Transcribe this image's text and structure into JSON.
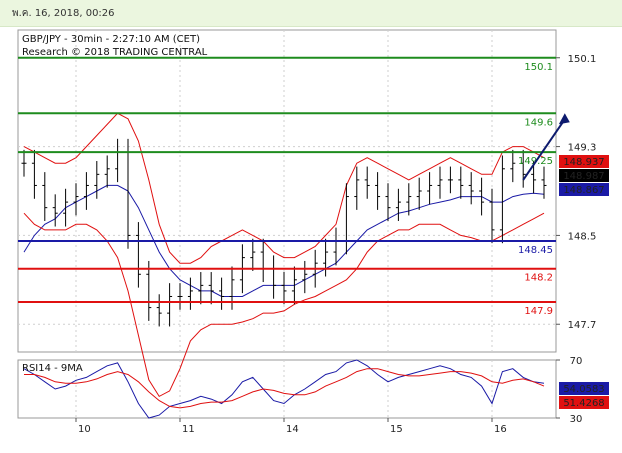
{
  "header": {
    "timestamp": "พ.ค. 16, 2018, 00:26"
  },
  "chart_data": {
    "type": "line",
    "title": "GBP/JPY - 30min - 2:27:10 AM (CET)",
    "subtitle": "Research © 2018 TRADING CENTRAL",
    "ylim": [
      147.45,
      150.35
    ],
    "y_ticks": [
      {
        "value": 150.1,
        "label": "150.1"
      },
      {
        "value": 149.3,
        "label": "149.3"
      },
      {
        "value": 148.5,
        "label": "148.5"
      },
      {
        "value": 147.7,
        "label": "147.7"
      }
    ],
    "x_ticks": [
      {
        "index": 5,
        "label": "10"
      },
      {
        "index": 15,
        "label": "11"
      },
      {
        "index": 25,
        "label": "14"
      },
      {
        "index": 35,
        "label": "15"
      },
      {
        "index": 45,
        "label": "16"
      }
    ],
    "levels": [
      {
        "value": 150.1,
        "label": "150.1",
        "color": "#1e8c1e"
      },
      {
        "value": 149.6,
        "label": "149.6",
        "color": "#1e8c1e"
      },
      {
        "value": 149.25,
        "label": "149.25",
        "color": "#1e8c1e"
      },
      {
        "value": 148.45,
        "label": "148.45",
        "color": "#1a1aa6"
      },
      {
        "value": 148.2,
        "label": "148.2",
        "color": "#e01010"
      },
      {
        "value": 147.9,
        "label": "147.9",
        "color": "#e01010"
      }
    ],
    "price_labels": [
      {
        "value": 148.937,
        "label": "148.937",
        "bg": "#e01010",
        "fg": "#ffffff"
      },
      {
        "value": 148.987,
        "label": "148.987",
        "bg": "#000000",
        "fg": "#ffffff"
      },
      {
        "value": 148.867,
        "label": "148.867",
        "bg": "#1a1aa6",
        "fg": "#ffffff"
      }
    ],
    "series": [
      {
        "name": "",
        "role": "price",
        "color": "#000000",
        "values": [
          149.15,
          148.95,
          148.75,
          148.7,
          148.8,
          148.85,
          148.95,
          149.05,
          149.1,
          149.25,
          148.5,
          148.15,
          147.85,
          147.8,
          147.95,
          147.95,
          148.0,
          148.05,
          148.0,
          147.95,
          148.1,
          148.3,
          148.35,
          148.2,
          148.05,
          148.0,
          148.1,
          148.15,
          148.25,
          148.35,
          148.45,
          148.85,
          149.0,
          148.95,
          148.85,
          148.75,
          148.8,
          148.85,
          148.9,
          148.95,
          149.0,
          149.0,
          148.95,
          148.9,
          148.8,
          148.55,
          149.1,
          149.15,
          149.05,
          149.0,
          148.95
        ]
      },
      {
        "name": "",
        "role": "ma",
        "color": "#1a1aa6",
        "values": [
          148.35,
          148.5,
          148.6,
          148.65,
          148.75,
          148.8,
          148.85,
          148.9,
          148.95,
          148.95,
          148.9,
          148.75,
          148.55,
          148.35,
          148.2,
          148.1,
          148.05,
          148.0,
          148.0,
          147.95,
          147.95,
          147.95,
          148.0,
          148.05,
          148.05,
          148.05,
          148.05,
          148.1,
          148.15,
          148.2,
          148.25,
          148.35,
          148.45,
          148.55,
          148.6,
          148.65,
          148.7,
          148.72,
          148.75,
          148.78,
          148.8,
          148.82,
          148.85,
          148.85,
          148.85,
          148.8,
          148.8,
          148.85,
          148.87,
          148.88,
          148.87
        ]
      },
      {
        "name": "",
        "role": "band-upper",
        "color": "#e01010",
        "values": [
          149.3,
          149.25,
          149.2,
          149.15,
          149.15,
          149.2,
          149.3,
          149.4,
          149.5,
          149.6,
          149.55,
          149.35,
          149.0,
          148.6,
          148.35,
          148.25,
          148.25,
          148.3,
          148.4,
          148.45,
          148.5,
          148.55,
          148.5,
          148.45,
          148.35,
          148.3,
          148.3,
          148.35,
          148.4,
          148.5,
          148.6,
          148.95,
          149.15,
          149.2,
          149.15,
          149.1,
          149.05,
          149.0,
          149.05,
          149.1,
          149.15,
          149.2,
          149.15,
          149.1,
          149.05,
          149.05,
          149.25,
          149.3,
          149.3,
          149.25,
          149.2
        ]
      },
      {
        "name": "",
        "role": "band-lower",
        "color": "#e01010",
        "values": [
          148.7,
          148.6,
          148.55,
          148.55,
          148.55,
          148.6,
          148.6,
          148.55,
          148.45,
          148.3,
          148.0,
          147.6,
          147.2,
          147.05,
          147.1,
          147.3,
          147.55,
          147.65,
          147.7,
          147.7,
          147.7,
          147.72,
          147.75,
          147.8,
          147.8,
          147.82,
          147.88,
          147.92,
          147.95,
          148.0,
          148.05,
          148.1,
          148.2,
          148.35,
          148.45,
          148.5,
          148.55,
          148.55,
          148.6,
          148.6,
          148.6,
          148.55,
          148.5,
          148.48,
          148.45,
          148.45,
          148.5,
          148.55,
          148.6,
          148.65,
          148.7
        ]
      }
    ],
    "projection": {
      "from": [
        48,
        149.0
      ],
      "to": [
        52,
        149.6
      ],
      "color": "#0d1a6e"
    },
    "rsi": {
      "title": "RSI14 - 9MA",
      "ylim": [
        30,
        70
      ],
      "ticks": [
        {
          "value": 70,
          "label": "70"
        },
        {
          "value": 30,
          "label": "30"
        }
      ],
      "labels": [
        {
          "value": 54.0583,
          "label": "54.0583",
          "bg": "#1a1aa6",
          "fg": "#ffffff"
        },
        {
          "value": 51.4268,
          "label": "51.4268",
          "bg": "#e01010",
          "fg": "#ffffff"
        }
      ],
      "series": [
        {
          "name": "",
          "role": "rsi",
          "color": "#1a1aa6",
          "values": [
            64,
            60,
            55,
            50,
            52,
            56,
            58,
            62,
            66,
            68,
            55,
            40,
            30,
            32,
            38,
            40,
            42,
            45,
            43,
            40,
            46,
            55,
            58,
            50,
            42,
            40,
            46,
            50,
            55,
            60,
            62,
            68,
            70,
            66,
            60,
            55,
            58,
            60,
            62,
            64,
            66,
            64,
            60,
            58,
            52,
            40,
            62,
            64,
            58,
            55,
            54
          ]
        },
        {
          "name": "",
          "role": "ma",
          "color": "#e01010",
          "values": [
            60,
            60,
            58,
            55,
            54,
            54,
            55,
            57,
            60,
            62,
            60,
            55,
            48,
            42,
            38,
            37,
            38,
            40,
            41,
            41,
            42,
            45,
            48,
            50,
            49,
            47,
            46,
            46,
            48,
            52,
            55,
            58,
            62,
            64,
            64,
            62,
            60,
            59,
            59,
            60,
            61,
            62,
            62,
            61,
            59,
            55,
            54,
            56,
            57,
            55,
            52
          ]
        }
      ]
    }
  }
}
